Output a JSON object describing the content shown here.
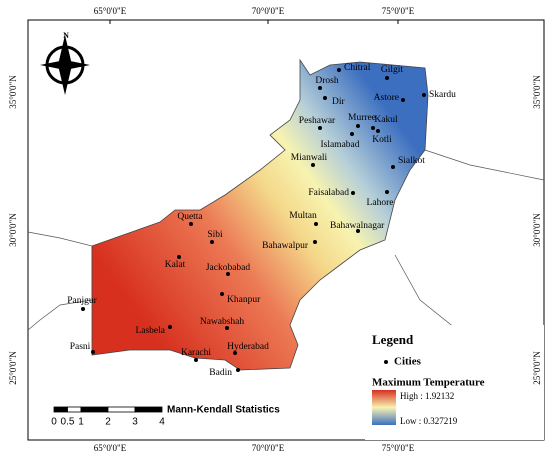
{
  "map": {
    "lon_labels": [
      "65°0'0\"E",
      "70°0'0\"E",
      "75°0'0\"E"
    ],
    "lat_labels": [
      "35°0'0\"N",
      "30°0'0\"N",
      "25°0'0\"N"
    ],
    "cities": [
      "Chitral",
      "Gilgit",
      "Drosh",
      "Dir",
      "Astore",
      "Skardu",
      "Peshawar",
      "Murree",
      "Kakul",
      "Islamabad",
      "Kotli",
      "Mianwali",
      "Sialkot",
      "Faisalabad",
      "Lahore",
      "Multan",
      "Bahawalnagar",
      "Bahawalpur",
      "Quetta",
      "Sibi",
      "Kalat",
      "Jackobabad",
      "Khanpur",
      "Panjgur",
      "Nawabshah",
      "Lasbela",
      "Hyderabad",
      "Karachi",
      "Pasni",
      "Badin"
    ]
  },
  "legend": {
    "title": "Legend",
    "cities_label": "Cities",
    "ramp_title": "Maximum Temperature",
    "high": "High : 1.92132",
    "low": "Low : 0.327219"
  },
  "scale_bar": {
    "labels": [
      0,
      0.5,
      1,
      2,
      3,
      4
    ],
    "title": "Mann-Kendall Statistics"
  }
}
